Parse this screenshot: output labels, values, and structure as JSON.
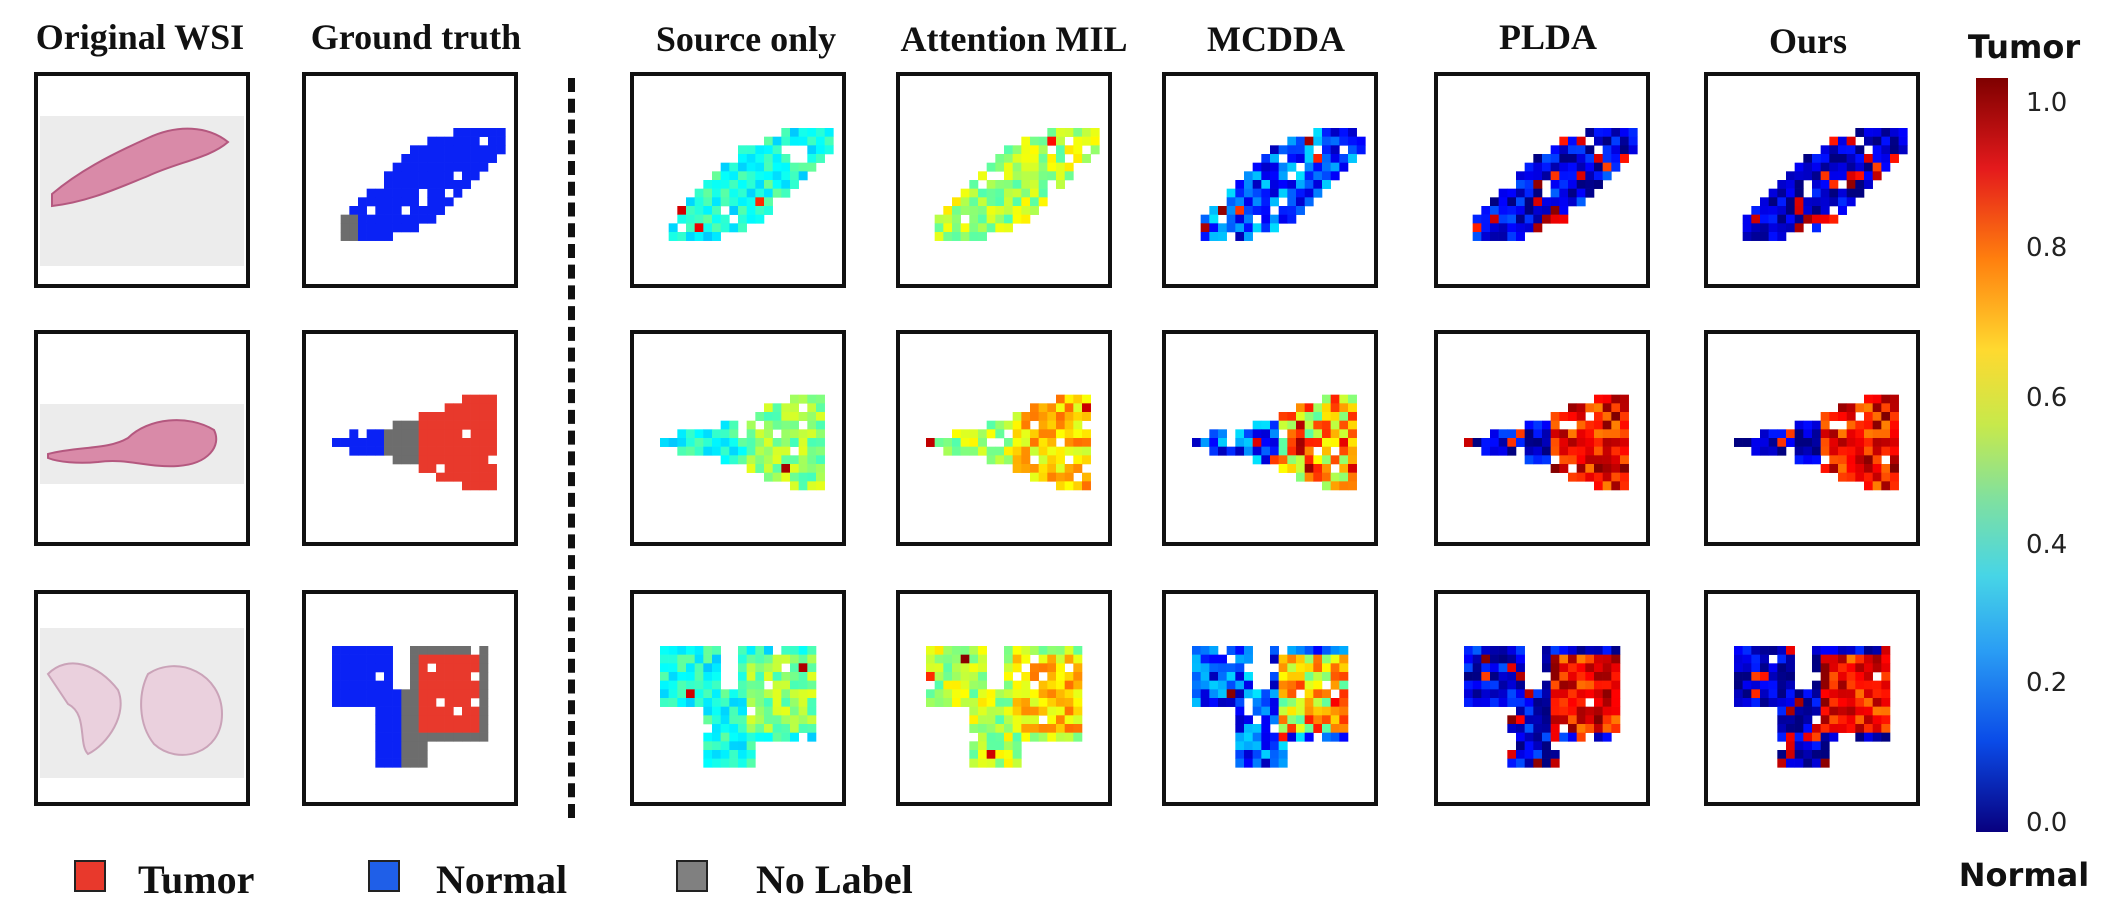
{
  "columns": [
    {
      "key": "original",
      "title": "Original WSI"
    },
    {
      "key": "gt",
      "title": "Ground truth"
    },
    {
      "key": "source",
      "title": "Source only"
    },
    {
      "key": "attn",
      "title": "Attention MIL"
    },
    {
      "key": "mcdda",
      "title": "MCDDA"
    },
    {
      "key": "plda",
      "title": "PLDA"
    },
    {
      "key": "ours",
      "title": "Ours"
    }
  ],
  "colorbar": {
    "top_label": "Tumor",
    "bottom_label": "Normal",
    "ticks": [
      "1.0",
      "0.8",
      "0.6",
      "0.4",
      "0.2",
      "0.0"
    ]
  },
  "legend": [
    {
      "label": "Tumor",
      "color": "#e8392c"
    },
    {
      "label": "Normal",
      "color": "#1f5fe8"
    },
    {
      "label": "No Label",
      "color": "#808080"
    }
  ],
  "colors": {
    "gt_tumor": "#e8392c",
    "gt_normal": "#0a22f5",
    "gt_nolabel": "#6d6d6d",
    "tissue_pink": "#d98aa8",
    "slide_bg": "#ececec"
  }
}
